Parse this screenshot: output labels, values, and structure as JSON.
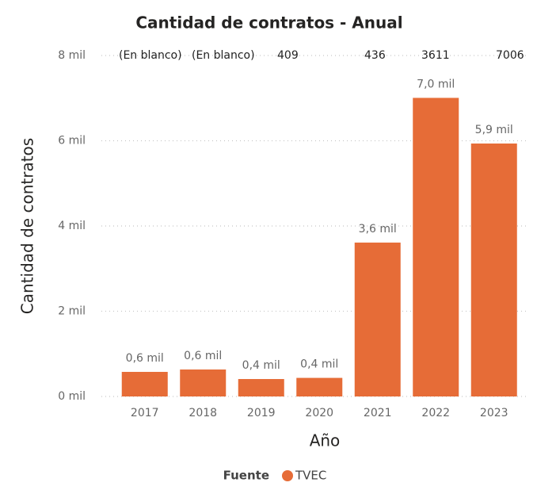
{
  "chart_data": {
    "type": "bar",
    "title": "Cantidad de contratos - Anual",
    "categories": [
      "2017",
      "2018",
      "2019",
      "2020",
      "2021",
      "2022",
      "2023"
    ],
    "values": [
      577,
      633,
      409,
      436,
      3611,
      7006,
      5935
    ],
    "value_labels": [
      "0,6 mil",
      "0,6 mil",
      "0,4 mil",
      "0,4 mil",
      "3,6 mil",
      "7,0 mil",
      "5,9 mil"
    ],
    "series_name": "TVEC",
    "legend_title": "Fuente",
    "color": "#e66c37",
    "x_label": "Año",
    "y_label": "Cantidad de contratos",
    "annotations": [
      "(En blanco)",
      "(En blanco)",
      "409",
      "436",
      "3611",
      "7006"
    ],
    "ylim": [
      0,
      8000
    ],
    "yticks": [
      {
        "value": 0,
        "label": "0 mil"
      },
      {
        "value": 2000,
        "label": "2 mil"
      },
      {
        "value": 4000,
        "label": "4 mil"
      },
      {
        "value": 6000,
        "label": "6 mil"
      },
      {
        "value": 8000,
        "label": "8 mil"
      }
    ],
    "grid": true
  }
}
